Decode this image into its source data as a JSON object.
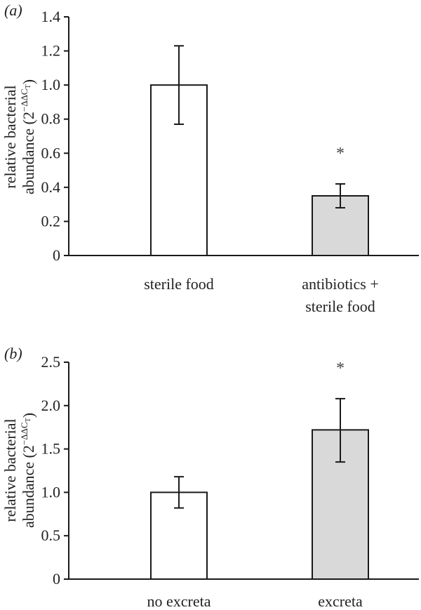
{
  "colors": {
    "axis": "#1a1a1a",
    "bar_white": "#ffffff",
    "bar_grey": "#d9d9d9",
    "bar_stroke": "#1a1a1a"
  },
  "chart_data": [
    {
      "panel_label": "(a)",
      "type": "bar",
      "ylabel_line1": "relative bacterial",
      "ylabel_line2": "abundance (2",
      "ylabel_exp": "−ΔΔC",
      "ylabel_sub": "T",
      "ylabel_close": ")",
      "ylim": [
        0,
        1.4
      ],
      "yticks": [
        "0",
        "0.2",
        "0.4",
        "0.6",
        "0.8",
        "1.0",
        "1.2",
        "1.4"
      ],
      "ytick_values": [
        0,
        0.2,
        0.4,
        0.6,
        0.8,
        1.0,
        1.2,
        1.4
      ],
      "categories": [
        [
          "sterile food"
        ],
        [
          "antibiotics +",
          "sterile food"
        ]
      ],
      "values": [
        1.0,
        0.35
      ],
      "error_low": [
        0.77,
        0.28
      ],
      "error_high": [
        1.23,
        0.42
      ],
      "significance": [
        "",
        "*"
      ],
      "bar_fill": [
        "white",
        "grey"
      ]
    },
    {
      "panel_label": "(b)",
      "type": "bar",
      "ylabel_line1": "relative bacterial",
      "ylabel_line2": "abundance (2",
      "ylabel_exp": "−ΔΔC",
      "ylabel_sub": "T",
      "ylabel_close": ")",
      "ylim": [
        0,
        2.5
      ],
      "yticks": [
        "0",
        "0.5",
        "1.0",
        "1.5",
        "2.0",
        "2.5"
      ],
      "ytick_values": [
        0,
        0.5,
        1.0,
        1.5,
        2.0,
        2.5
      ],
      "categories": [
        [
          "no excreta"
        ],
        [
          "excreta"
        ]
      ],
      "values": [
        1.0,
        1.72
      ],
      "error_low": [
        0.82,
        1.35
      ],
      "error_high": [
        1.18,
        2.08
      ],
      "significance": [
        "",
        "*"
      ],
      "bar_fill": [
        "white",
        "grey"
      ]
    }
  ]
}
